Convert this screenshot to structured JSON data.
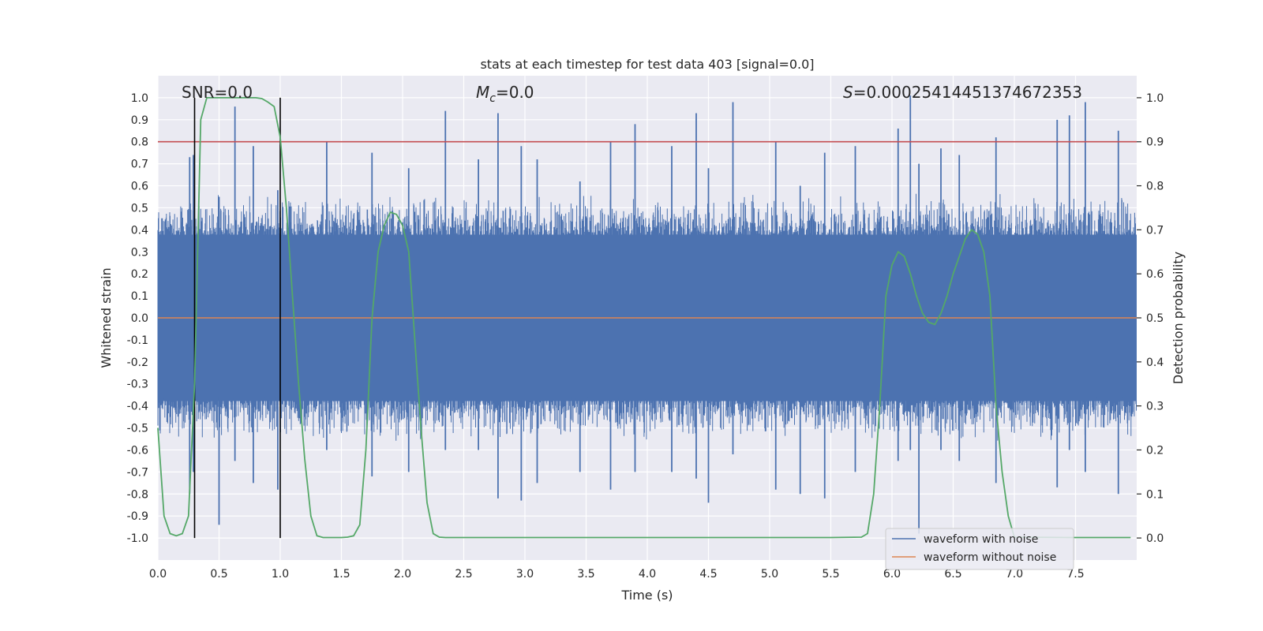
{
  "chart_data": {
    "type": "line",
    "title": "stats at each timestep for test data 403 [signal=0.0]",
    "xlabel": "Time (s)",
    "ylabel": "Whitened strain",
    "y2label": "Detection probability",
    "xlim": [
      0.0,
      8.0
    ],
    "ylim": [
      -1.1,
      1.1
    ],
    "y2lim": [
      -0.05,
      1.05
    ],
    "xticks": [
      "0.0",
      "0.5",
      "1.0",
      "1.5",
      "2.0",
      "2.5",
      "3.0",
      "3.5",
      "4.0",
      "4.5",
      "5.0",
      "5.5",
      "6.0",
      "6.5",
      "7.0",
      "7.5"
    ],
    "yticks": [
      "1.0",
      "0.9",
      "0.8",
      "0.7",
      "0.6",
      "0.5",
      "0.4",
      "0.3",
      "0.2",
      "0.1",
      "0.0",
      "-0.1",
      "-0.2",
      "-0.3",
      "-0.4",
      "-0.5",
      "-0.6",
      "-0.7",
      "-0.8",
      "-0.9",
      "-1.0"
    ],
    "y2ticks": [
      "1.0",
      "0.9",
      "0.8",
      "0.7",
      "0.6",
      "0.5",
      "0.4",
      "0.3",
      "0.2",
      "0.1",
      "0.0"
    ],
    "annotations": {
      "snr": "SNR=0.0",
      "mc_symbol": "M",
      "mc_sub": "c",
      "mc_value": "=0.0",
      "s_symbol": "S",
      "s_value": "=0.00025414451374672353"
    },
    "threshold": {
      "value": 0.9,
      "axis": "y2"
    },
    "vertical_markers": [
      0.3,
      1.0
    ],
    "legend": {
      "location": "lower right",
      "entries": [
        "waveform with noise",
        "waveform without noise"
      ]
    },
    "series": [
      {
        "name": "waveform with noise",
        "axis": "y",
        "typical_amplitude": 0.42,
        "spikes": [
          [
            0.26,
            0.73,
            -0.8
          ],
          [
            0.29,
            0.74,
            -0.7
          ],
          [
            0.5,
            0.55,
            -0.94
          ],
          [
            0.63,
            0.96,
            -0.65
          ],
          [
            0.78,
            0.78,
            -0.75
          ],
          [
            0.98,
            0.58,
            -0.78
          ],
          [
            1.38,
            0.8,
            -0.6
          ],
          [
            1.75,
            0.75,
            -0.72
          ],
          [
            2.05,
            0.68,
            -0.7
          ],
          [
            2.35,
            0.94,
            -0.6
          ],
          [
            2.62,
            0.72,
            -0.6
          ],
          [
            2.78,
            0.93,
            -0.82
          ],
          [
            2.97,
            0.78,
            -0.83
          ],
          [
            3.1,
            0.72,
            -0.75
          ],
          [
            3.45,
            0.62,
            -0.7
          ],
          [
            3.7,
            0.8,
            -0.78
          ],
          [
            3.9,
            0.88,
            -0.7
          ],
          [
            4.2,
            0.78,
            -0.7
          ],
          [
            4.4,
            0.93,
            -0.73
          ],
          [
            4.5,
            0.68,
            -0.84
          ],
          [
            4.7,
            0.98,
            -0.62
          ],
          [
            5.05,
            0.8,
            -0.78
          ],
          [
            5.25,
            0.6,
            -0.8
          ],
          [
            5.45,
            0.75,
            -0.82
          ],
          [
            5.7,
            0.78,
            -0.7
          ],
          [
            6.05,
            0.86,
            -0.65
          ],
          [
            6.15,
            1.01,
            -0.6
          ],
          [
            6.22,
            0.7,
            -0.98
          ],
          [
            6.4,
            0.77,
            -0.6
          ],
          [
            6.55,
            0.74,
            -0.65
          ],
          [
            6.85,
            0.82,
            -0.75
          ],
          [
            7.35,
            0.9,
            -0.77
          ],
          [
            7.45,
            0.92,
            -0.6
          ],
          [
            7.58,
            0.98,
            -0.7
          ],
          [
            7.85,
            0.85,
            -0.8
          ]
        ]
      },
      {
        "name": "waveform without noise",
        "axis": "y",
        "x": [
          0.0,
          8.0
        ],
        "y": [
          0.0,
          0.0
        ]
      },
      {
        "name": "detection probability",
        "axis": "y2",
        "x": [
          0.0,
          0.05,
          0.1,
          0.15,
          0.2,
          0.25,
          0.3,
          0.35,
          0.4,
          0.45,
          0.5,
          0.55,
          0.6,
          0.65,
          0.7,
          0.75,
          0.8,
          0.85,
          0.9,
          0.95,
          1.0,
          1.05,
          1.1,
          1.15,
          1.2,
          1.25,
          1.3,
          1.35,
          1.4,
          1.45,
          1.5,
          1.55,
          1.6,
          1.65,
          1.7,
          1.75,
          1.8,
          1.85,
          1.9,
          1.95,
          2.0,
          2.05,
          2.1,
          2.15,
          2.2,
          2.25,
          2.3,
          2.35,
          2.4,
          2.5,
          3.0,
          4.0,
          5.0,
          5.5,
          5.75,
          5.8,
          5.85,
          5.9,
          5.95,
          6.0,
          6.05,
          6.1,
          6.15,
          6.2,
          6.25,
          6.3,
          6.35,
          6.4,
          6.45,
          6.5,
          6.55,
          6.6,
          6.65,
          6.7,
          6.75,
          6.8,
          6.85,
          6.9,
          6.95,
          7.0,
          7.5,
          7.95
        ],
        "y": [
          0.25,
          0.05,
          0.01,
          0.005,
          0.01,
          0.05,
          0.35,
          0.95,
          1.0,
          1.0,
          1.0,
          1.0,
          1.0,
          1.0,
          1.0,
          1.0,
          1.0,
          0.998,
          0.99,
          0.98,
          0.91,
          0.75,
          0.55,
          0.35,
          0.18,
          0.05,
          0.005,
          0.001,
          0.001,
          0.001,
          0.001,
          0.002,
          0.005,
          0.03,
          0.2,
          0.5,
          0.65,
          0.71,
          0.74,
          0.735,
          0.71,
          0.65,
          0.45,
          0.25,
          0.08,
          0.01,
          0.002,
          0.001,
          0.001,
          0.001,
          0.001,
          0.001,
          0.001,
          0.001,
          0.002,
          0.01,
          0.1,
          0.3,
          0.55,
          0.62,
          0.65,
          0.64,
          0.6,
          0.55,
          0.51,
          0.49,
          0.485,
          0.51,
          0.55,
          0.6,
          0.64,
          0.68,
          0.7,
          0.69,
          0.65,
          0.55,
          0.3,
          0.15,
          0.05,
          0.002,
          0.001,
          0.001
        ]
      }
    ]
  }
}
